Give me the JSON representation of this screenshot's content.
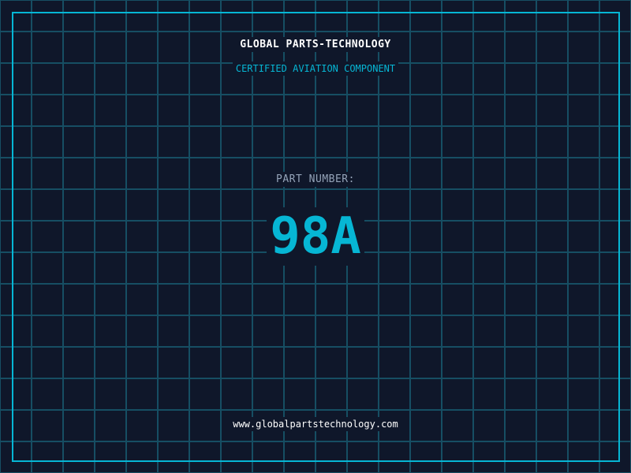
{
  "header": {
    "title": "GLOBAL PARTS-TECHNOLOGY",
    "subtitle": "CERTIFIED AVIATION COMPONENT"
  },
  "part": {
    "label": "PART NUMBER:",
    "number": "98A"
  },
  "footer": {
    "url": "www.globalpartstechnology.com"
  },
  "colors": {
    "accent": "#06b6d4",
    "background": "#0f172a",
    "grid": "#164e63"
  }
}
